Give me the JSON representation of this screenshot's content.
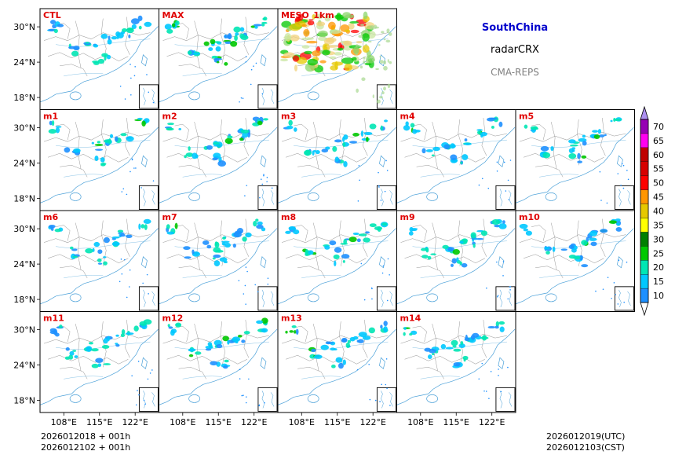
{
  "header": {
    "region": "SouthChina",
    "product": "radarCRX",
    "system": "CMA-REPS",
    "region_color": "#0000cc",
    "system_color": "#808080"
  },
  "panels": [
    {
      "label": "CTL",
      "style": "normal",
      "intensity": 1.0
    },
    {
      "label": "MAX",
      "style": "normal",
      "intensity": 1.25
    },
    {
      "label": "MESO_1km",
      "style": "meso",
      "intensity": 1.0
    },
    {
      "label": "m1",
      "style": "normal",
      "intensity": 0.95
    },
    {
      "label": "m2",
      "style": "normal",
      "intensity": 1.15
    },
    {
      "label": "m3",
      "style": "normal",
      "intensity": 0.9
    },
    {
      "label": "m4",
      "style": "normal",
      "intensity": 0.8
    },
    {
      "label": "m5",
      "style": "normal",
      "intensity": 0.85
    },
    {
      "label": "m6",
      "style": "normal",
      "intensity": 0.75
    },
    {
      "label": "m7",
      "style": "normal",
      "intensity": 0.9
    },
    {
      "label": "m8",
      "style": "normal",
      "intensity": 0.85
    },
    {
      "label": "m9",
      "style": "normal",
      "intensity": 1.0
    },
    {
      "label": "m10",
      "style": "normal",
      "intensity": 0.8
    },
    {
      "label": "m11",
      "style": "normal",
      "intensity": 0.95
    },
    {
      "label": "m12",
      "style": "normal",
      "intensity": 1.0
    },
    {
      "label": "m13",
      "style": "normal",
      "intensity": 0.95
    },
    {
      "label": "m14",
      "style": "normal",
      "intensity": 0.9
    }
  ],
  "axes": {
    "lat_ticks": [
      "30°N",
      "24°N",
      "18°N"
    ],
    "lon_ticks": [
      "108°E",
      "115°E",
      "122°E"
    ]
  },
  "colorbar": {
    "levels": [
      "10",
      "15",
      "20",
      "25",
      "30",
      "35",
      "40",
      "45",
      "50",
      "55",
      "60",
      "65",
      "70"
    ],
    "colors": [
      "#1e90ff",
      "#00c8ff",
      "#00e6b4",
      "#00c800",
      "#008000",
      "#ffff00",
      "#e6c800",
      "#ff9600",
      "#ff0000",
      "#d70000",
      "#c00000",
      "#ff00f0",
      "#9600b4",
      "#ad90f0"
    ],
    "over_color": "#ad90f0",
    "under_color": "#ffffff"
  },
  "footer": {
    "init_utc": "2026012018  +  001h",
    "init_cst": "2026012102  +  001h",
    "valid_utc": "2026012019(UTC)",
    "valid_cst": "2026012103(CST)"
  }
}
